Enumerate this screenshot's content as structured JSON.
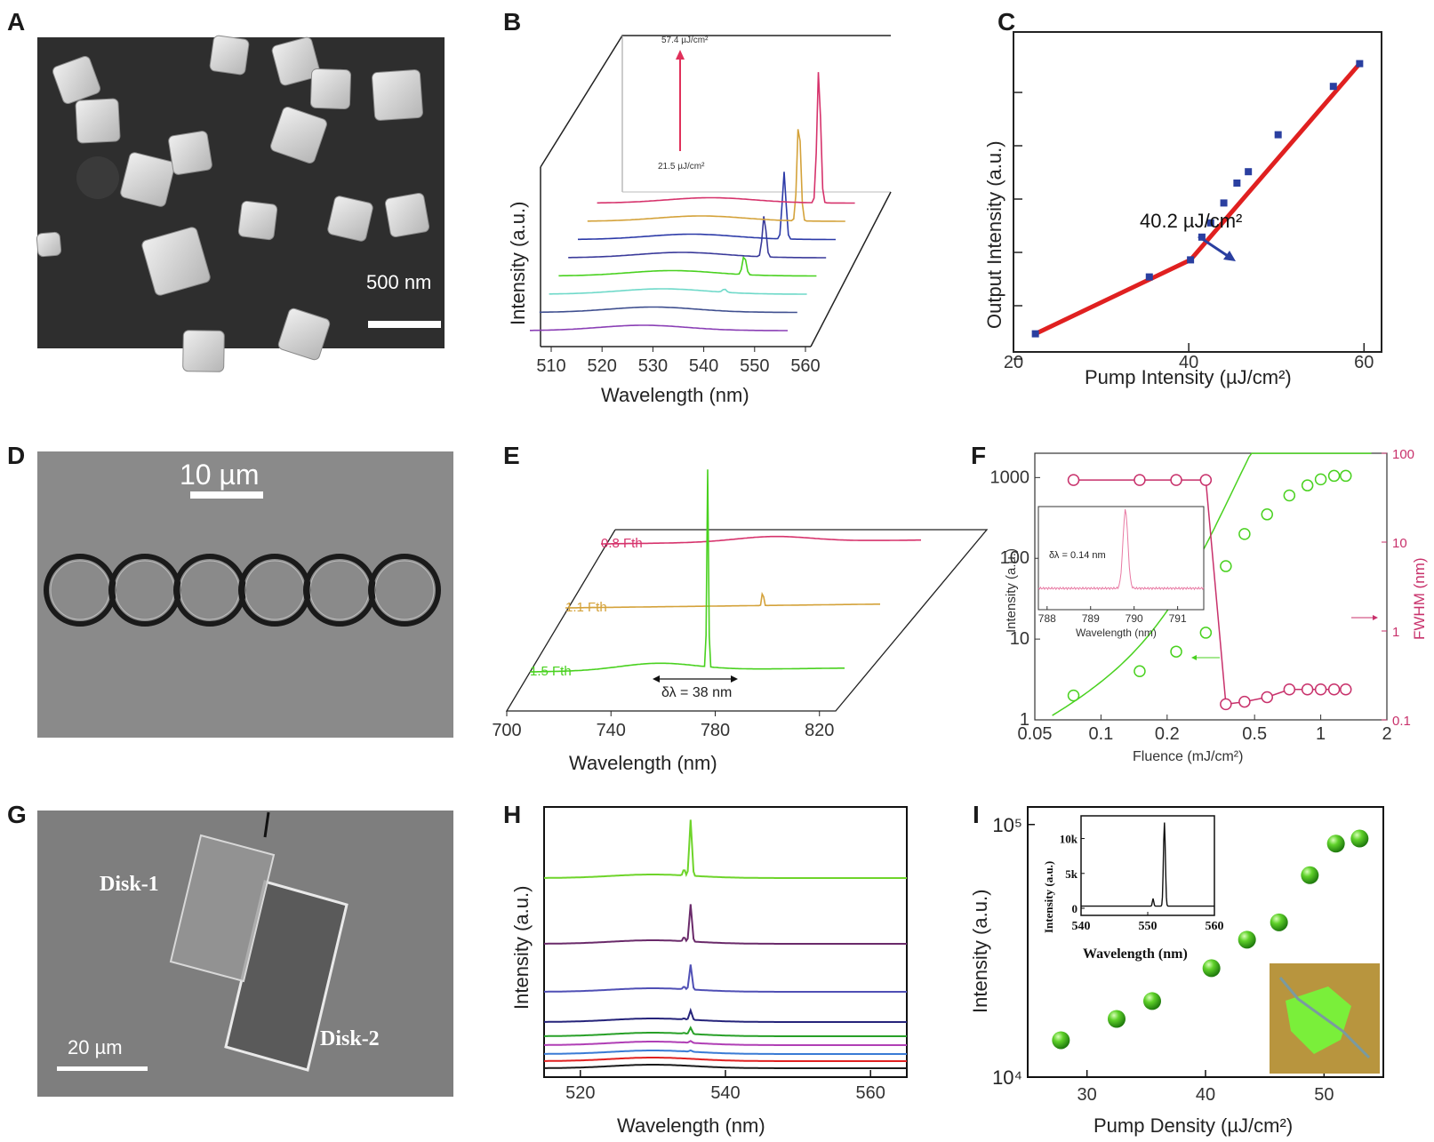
{
  "panels": {
    "A": {
      "letter": "A",
      "scale_bar": "500 nm"
    },
    "B": {
      "letter": "B",
      "top_fluence": "57.4 µJ/cm²",
      "bottom_fluence": "21.5 µJ/cm²"
    },
    "C": {
      "letter": "C",
      "threshold_label": "40.2 µJ/cm²"
    },
    "D": {
      "letter": "D",
      "scale_bar": "10 µm"
    },
    "E": {
      "letter": "E",
      "traces": [
        "0.8 Fth",
        "1.1 Fth",
        "1.5 Fth"
      ],
      "delta_label": "δλ = 38 nm"
    },
    "F": {
      "letter": "F",
      "inset_label": "δλ = 0.14 nm"
    },
    "G": {
      "letter": "G",
      "disk1": "Disk-1",
      "disk2": "Disk-2",
      "scale_bar": "20 µm"
    },
    "H": {
      "letter": "H"
    },
    "I": {
      "letter": "I"
    }
  },
  "colors": {
    "red": "#e02020",
    "blue": "#2a3fa0",
    "green": "#49d11f",
    "magenta": "#c8316b"
  },
  "chart_data": [
    {
      "id": "B",
      "type": "line",
      "xlabel": "Wavelength (nm)",
      "ylabel": "Intensity (a.u.)",
      "x_ticks": [
        "510",
        "520",
        "530",
        "540",
        "550",
        "560"
      ],
      "xlim": [
        510,
        560
      ],
      "series": [
        {
          "name": "trace-1",
          "color": "#8a3fb5",
          "peak_nm": null,
          "peak": 0
        },
        {
          "name": "trace-2",
          "color": "#3f4f8f",
          "peak_nm": null,
          "peak": 0
        },
        {
          "name": "trace-3",
          "color": "#6fd9c9",
          "peak_nm": 544,
          "peak": 0.1
        },
        {
          "name": "trace-4",
          "color": "#49d11f",
          "peak_nm": 546,
          "peak": 0.6
        },
        {
          "name": "trace-5",
          "color": "#3a3a9a",
          "peak_nm": 548,
          "peak": 1.3
        },
        {
          "name": "trace-6",
          "color": "#2c3aa8",
          "peak_nm": 550,
          "peak": 2.1
        },
        {
          "name": "trace-7",
          "color": "#d4a23a",
          "peak_nm": 551,
          "peak": 3.2
        },
        {
          "name": "trace-8",
          "color": "#d6336c",
          "peak_nm": 553,
          "peak": 4.2
        }
      ]
    },
    {
      "id": "C",
      "type": "line",
      "xlabel": "Pump Intensity (µJ/cm²)",
      "ylabel": "Output Intensity (a.u.)",
      "x_ticks": [
        "20",
        "40",
        "60"
      ],
      "xlim": [
        20,
        62
      ],
      "ylim": [
        0,
        1
      ],
      "x": [
        22.5,
        35.5,
        40.2,
        41.5,
        42.5,
        44,
        45.5,
        46.8,
        50.2,
        56.5,
        59.5
      ],
      "y": [
        0.02,
        0.22,
        0.28,
        0.36,
        0.41,
        0.48,
        0.55,
        0.59,
        0.72,
        0.89,
        0.97
      ]
    },
    {
      "id": "E",
      "type": "line",
      "xlabel": "Wavelength (nm)",
      "x_ticks": [
        "700",
        "740",
        "780",
        "820"
      ],
      "series": [
        {
          "name": "0.8 Fth",
          "color": "#d6336c"
        },
        {
          "name": "1.1 Fth",
          "color": "#d4a23a"
        },
        {
          "name": "1.5 Fth",
          "color": "#49d11f"
        }
      ]
    },
    {
      "id": "F",
      "type": "scatter",
      "xlabel": "Fluence (mJ/cm²)",
      "ylabel": "Intensity (a.u.)",
      "y2label": "FWHM (nm)",
      "x_ticks": [
        "0.05",
        "0.1",
        "0.2",
        "0.5",
        "1",
        "2"
      ],
      "y_ticks": [
        "1",
        "10",
        "100",
        "1000"
      ],
      "y2_ticks": [
        "0.1",
        "1",
        "10",
        "100"
      ],
      "intensity_x": [
        0.075,
        0.15,
        0.22,
        0.3,
        0.37,
        0.45,
        0.57,
        0.72,
        0.87,
        1.0,
        1.15,
        1.3
      ],
      "intensity_y": [
        2,
        4,
        7,
        12,
        80,
        200,
        350,
        600,
        800,
        950,
        1050,
        1050
      ],
      "fwhm_x": [
        0.075,
        0.15,
        0.22,
        0.3,
        0.37,
        0.45,
        0.57,
        0.72,
        0.87,
        1.0,
        1.15,
        1.3
      ],
      "fwhm_y": [
        50,
        50,
        50,
        50,
        0.15,
        0.16,
        0.18,
        0.22,
        0.22,
        0.22,
        0.22,
        0.22
      ],
      "inset": {
        "xlabel": "Wavelength (nm)",
        "x_ticks": [
          "788",
          "789",
          "790",
          "791"
        ],
        "peak_nm": 789.8
      }
    },
    {
      "id": "H",
      "type": "line",
      "xlabel": "Wavelength (nm)",
      "ylabel": "Intensity (a.u.)",
      "x_ticks": [
        "520",
        "540",
        "560"
      ],
      "xlim": [
        515,
        565
      ],
      "series": [
        {
          "name": "trace-1",
          "color": "#1a1a1a",
          "peak": 0.0
        },
        {
          "name": "trace-2",
          "color": "#e02020",
          "peak": 0.0
        },
        {
          "name": "trace-3",
          "color": "#3a7bd5",
          "peak": 0.02
        },
        {
          "name": "trace-4",
          "color": "#b03fb5",
          "peak": 0.03
        },
        {
          "name": "trace-5",
          "color": "#28a028",
          "peak": 0.1
        },
        {
          "name": "trace-6",
          "color": "#25237a",
          "peak": 0.15
        },
        {
          "name": "trace-7",
          "color": "#4f4fb5",
          "peak": 0.4
        },
        {
          "name": "trace-8",
          "color": "#6a2a6a",
          "peak": 0.6
        },
        {
          "name": "trace-9",
          "color": "#6ed42a",
          "peak": 0.9
        }
      ]
    },
    {
      "id": "I",
      "type": "scatter",
      "xlabel": "Pump Density (µJ/cm²)",
      "ylabel": "Intensity (a.u.)",
      "x_ticks": [
        "30",
        "40",
        "50"
      ],
      "xlim": [
        25,
        55
      ],
      "x": [
        27.8,
        32.5,
        35.5,
        40.5,
        43.5,
        46.2,
        48.8,
        51,
        53
      ],
      "y": [
        14000,
        17000,
        20000,
        27000,
        35000,
        41000,
        63000,
        84000,
        88000
      ],
      "inset": {
        "xlabel": "Wavelength (nm)",
        "ylabel": "Intensity (a.u.)",
        "x_ticks": [
          "540",
          "550",
          "560"
        ],
        "y_ticks": [
          "0",
          "5k",
          "10k"
        ],
        "peak_nm": 552.5,
        "peak": 12000
      }
    }
  ],
  "text": {
    "B_x_ticks": [
      "510",
      "520",
      "530",
      "540",
      "550",
      "560"
    ],
    "C_x_ticks": [
      "20",
      "40",
      "60"
    ],
    "E_x_ticks": [
      "700",
      "740",
      "780",
      "820"
    ],
    "F_x_ticks": [
      "0.05",
      "0.1",
      "0.2",
      "0.5",
      "1",
      "2"
    ],
    "F_y_ticks": [
      "1",
      "10",
      "100",
      "1000"
    ],
    "F_y2_ticks": [
      "0.1",
      "1",
      "10",
      "100"
    ],
    "F_inset_x_ticks": [
      "788",
      "789",
      "790",
      "791"
    ],
    "H_x_ticks": [
      "520",
      "540",
      "560"
    ],
    "I_x_ticks": [
      "30",
      "40",
      "50"
    ],
    "I_y_ticks": [
      "10⁴",
      "10⁵"
    ],
    "I_inset_x_ticks": [
      "540",
      "550",
      "560"
    ],
    "I_inset_y_ticks": [
      "0",
      "5k",
      "10k"
    ],
    "xlabel_wavelength": "Wavelength (nm)",
    "ylabel_intensity": "Intensity (a.u.)",
    "C_xlabel": "Pump Intensity (µJ/cm²)",
    "C_ylabel": "Output Intensity (a.u.)",
    "F_xlabel": "Fluence (mJ/cm²)",
    "F_y2label": "FWHM (nm)",
    "I_xlabel": "Pump Density (µJ/cm²)"
  }
}
